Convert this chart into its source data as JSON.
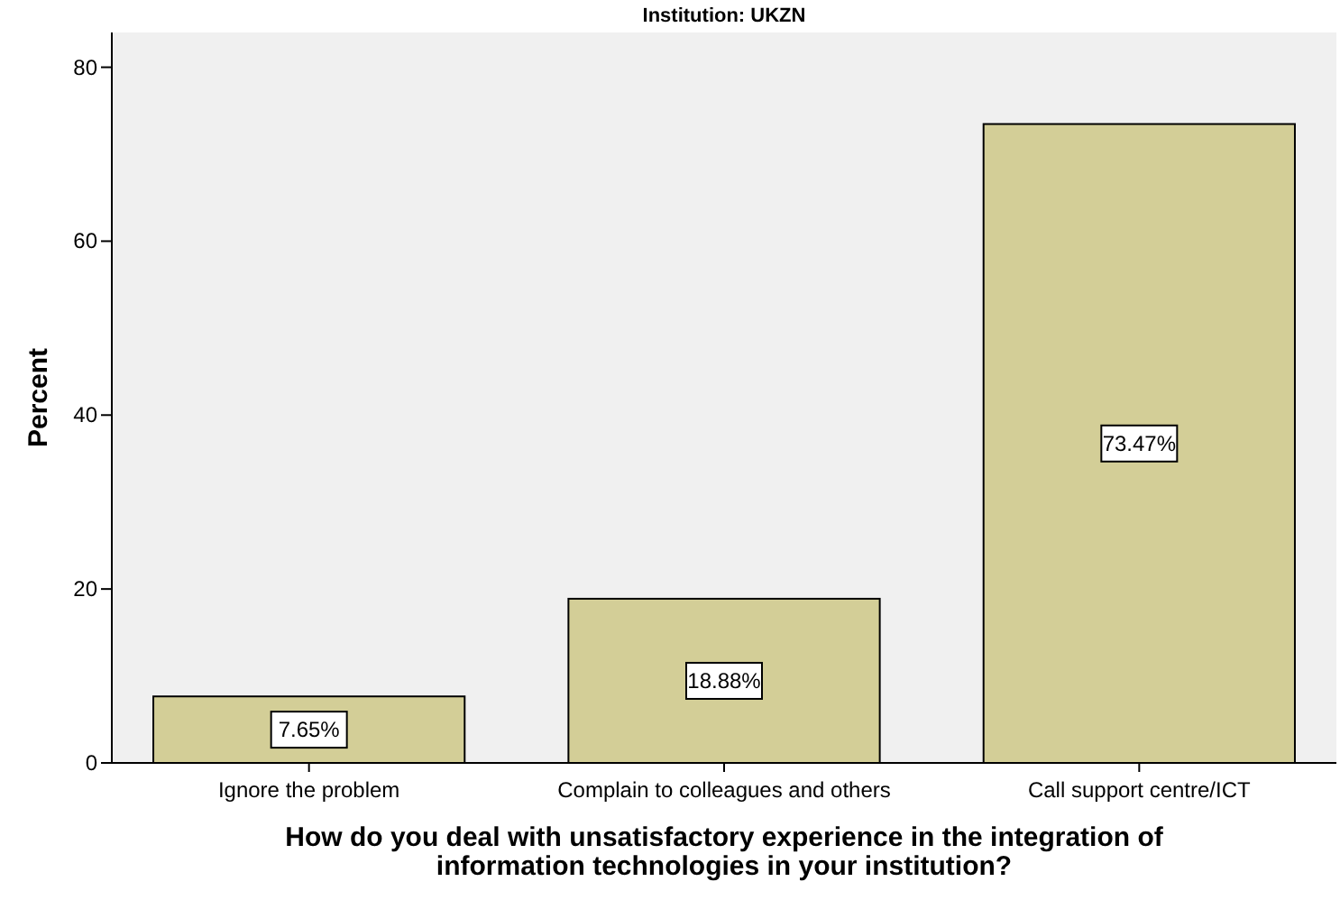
{
  "chart_data": {
    "type": "bar",
    "title": "Institution: UKZN",
    "xlabel": "How do you deal with unsatisfactory experience in the integration of\ninformation technologies in your institution?",
    "ylabel": "Percent",
    "categories": [
      "Ignore the problem",
      "Complain to colleagues and others",
      "Call support centre/ICT"
    ],
    "values": [
      7.65,
      18.88,
      73.47
    ],
    "value_labels": [
      "7.65%",
      "18.88%",
      "73.47%"
    ],
    "color": "#d3ce97",
    "ylim": [
      0,
      84
    ],
    "yticks": [
      0,
      20,
      40,
      60,
      80
    ],
    "grid": false
  }
}
